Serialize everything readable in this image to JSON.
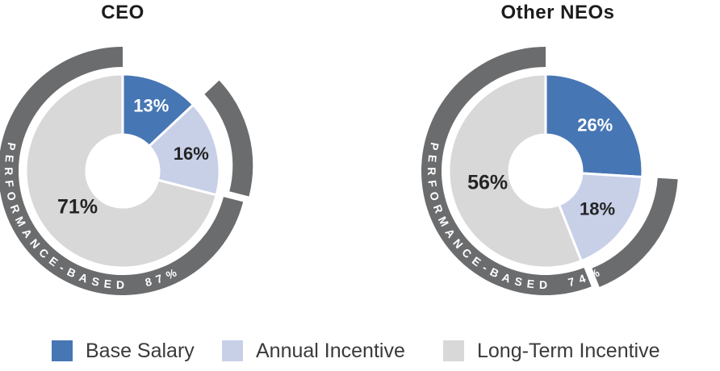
{
  "page": {
    "background": "#ffffff"
  },
  "colors": {
    "base_salary": "#4776b4",
    "annual_incentive": "#c8d0e8",
    "long_term_incentive": "#d8d8d8",
    "performance_ring": "#6b6c6e",
    "slice_label_light": "#ffffff",
    "slice_label_dark": "#242424",
    "ring_label_text": "#ffffff",
    "title_text": "#1c1c1c",
    "legend_text": "#3a3a3a"
  },
  "chart_data": [
    {
      "type": "pie",
      "subtype": "donut-with-outer-ring",
      "title": "CEO",
      "categories": [
        "Base Salary",
        "Annual Incentive",
        "Long-Term Incentive"
      ],
      "values": [
        13,
        16,
        71
      ],
      "value_labels": [
        "13%",
        "16%",
        "71%"
      ],
      "start_angle_deg": 0,
      "direction": "clockwise",
      "ring": {
        "label": "PERFORMANCE-BASED",
        "value": "87%",
        "coverage_pct": 87,
        "display_text": "PERFORMANCE-BASED  87%"
      }
    },
    {
      "type": "pie",
      "subtype": "donut-with-outer-ring",
      "title": "Other NEOs",
      "categories": [
        "Base Salary",
        "Annual Incentive",
        "Long-Term Incentive"
      ],
      "values": [
        26,
        18,
        56
      ],
      "value_labels": [
        "26%",
        "18%",
        "56%"
      ],
      "start_angle_deg": 0,
      "direction": "clockwise",
      "ring": {
        "label": "PERFORMANCE-BASED",
        "value": "74%",
        "coverage_pct": 74,
        "display_text": "PERFORMANCE-BASED  74%"
      }
    }
  ],
  "legend": {
    "position": "bottom",
    "items": [
      {
        "label": "Base Salary",
        "color": "#4776b4"
      },
      {
        "label": "Annual Incentive",
        "color": "#c8d0e8"
      },
      {
        "label": "Long-Term Incentive",
        "color": "#d8d8d8"
      }
    ]
  }
}
